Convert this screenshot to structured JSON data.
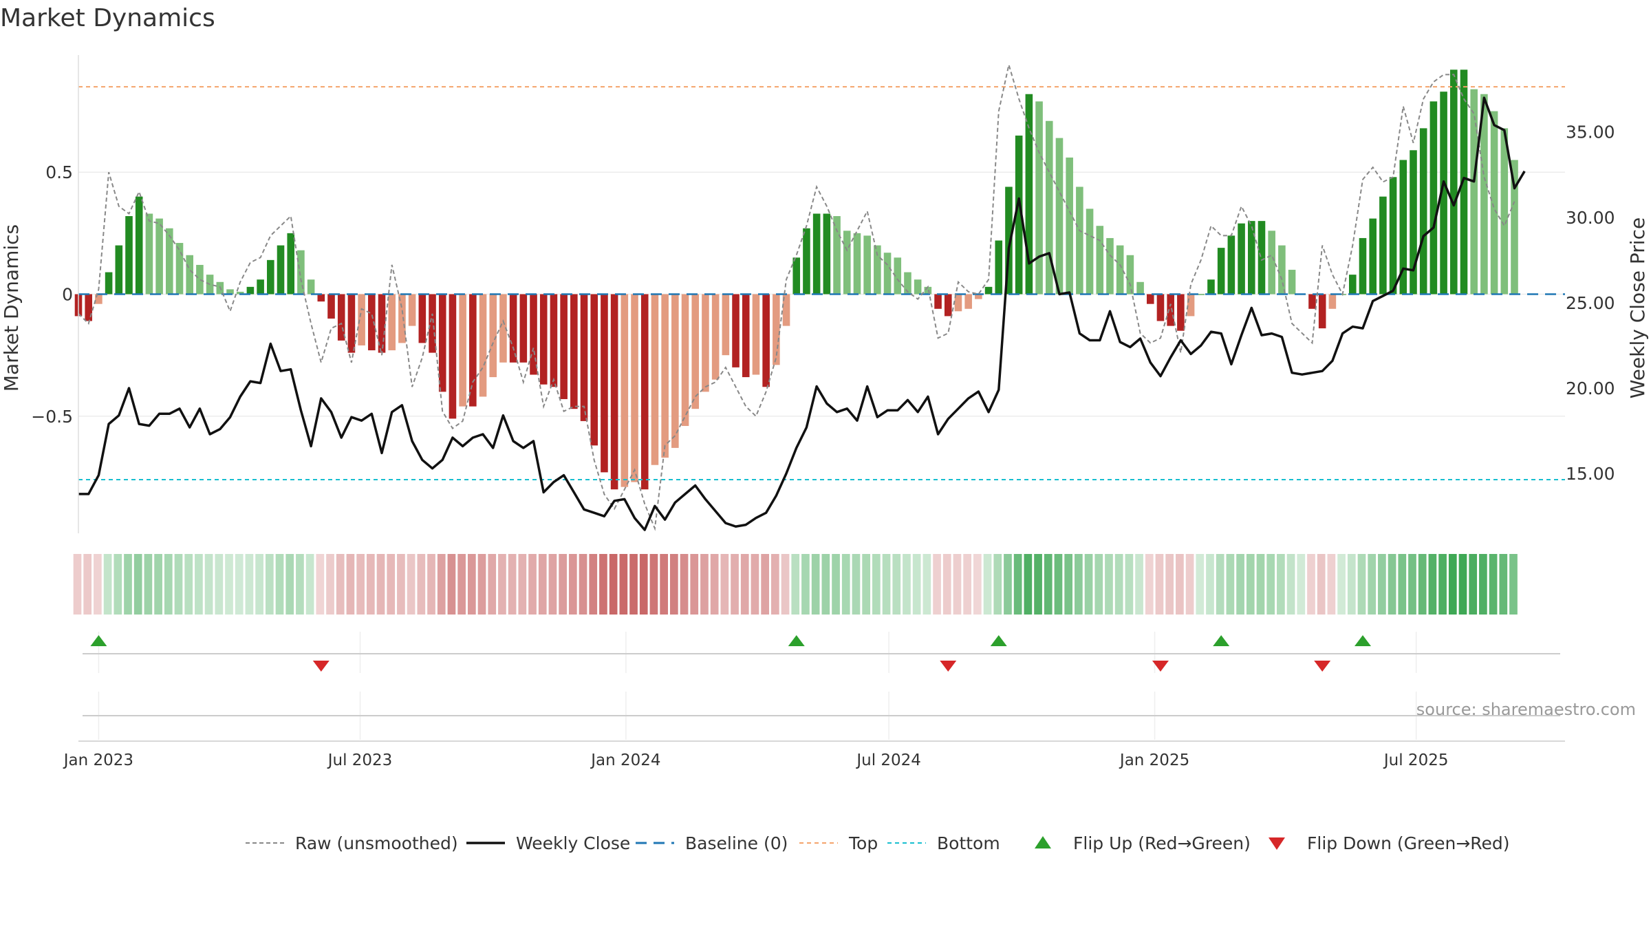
{
  "page_title": "Market Dynamics",
  "source_note": "source: sharemaestro.com",
  "colors": {
    "strong_green": "#228B22",
    "light_green": "#7fbf7b",
    "strong_red": "#b22222",
    "light_red": "#e39b80",
    "raw_line": "#888888",
    "close_line": "#111111",
    "baseline": "#1f77b4",
    "top": "#f4a46b",
    "bottom": "#17becf",
    "flip_up": "#2ca02c",
    "flip_down": "#d62728"
  },
  "chart_data": {
    "type": "bar",
    "title": "Market Dynamics",
    "ylabel": "Market Dynamics",
    "y2label": "Weekly Close Price",
    "ylim": [
      -0.98,
      0.98
    ],
    "y2lim": [
      11.5,
      39.5
    ],
    "y_ticks": [
      {
        "value": 0.5,
        "label": "0.5"
      },
      {
        "value": 0,
        "label": "0"
      },
      {
        "value": -0.5,
        "label": "−0.5"
      }
    ],
    "y2_ticks": [
      {
        "value": 35,
        "label": "35.00"
      },
      {
        "value": 30,
        "label": "30.00"
      },
      {
        "value": 25,
        "label": "25.00"
      },
      {
        "value": 20,
        "label": "20.00"
      },
      {
        "value": 15,
        "label": "15.00"
      }
    ],
    "x_ticks": [
      {
        "date": "2023-01-01",
        "label": "Jan 2023"
      },
      {
        "date": "2023-07-01",
        "label": "Jul 2023"
      },
      {
        "date": "2024-01-01",
        "label": "Jan 2024"
      },
      {
        "date": "2024-07-01",
        "label": "Jul 2024"
      },
      {
        "date": "2025-01-01",
        "label": "Jan 2025"
      },
      {
        "date": "2025-07-01",
        "label": "Jul 2025"
      }
    ],
    "x_range": [
      "2022-12-18",
      "2025-10-12"
    ],
    "first_week": "2022-12-18",
    "top_level": 0.85,
    "bottom_level": -0.76,
    "grid": true,
    "legend_position": "bottom",
    "dynamics": [
      -0.09,
      -0.11,
      -0.04,
      0.09,
      0.2,
      0.32,
      0.4,
      0.33,
      0.31,
      0.27,
      0.21,
      0.16,
      0.12,
      0.08,
      0.05,
      0.02,
      0.01,
      0.03,
      0.06,
      0.14,
      0.2,
      0.25,
      0.18,
      0.06,
      -0.03,
      -0.1,
      -0.19,
      -0.24,
      -0.21,
      -0.23,
      -0.24,
      -0.23,
      -0.2,
      -0.13,
      -0.2,
      -0.24,
      -0.4,
      -0.51,
      -0.46,
      -0.46,
      -0.42,
      -0.34,
      -0.28,
      -0.28,
      -0.28,
      -0.33,
      -0.37,
      -0.38,
      -0.43,
      -0.47,
      -0.52,
      -0.62,
      -0.73,
      -0.8,
      -0.79,
      -0.77,
      -0.8,
      -0.7,
      -0.67,
      -0.63,
      -0.54,
      -0.47,
      -0.4,
      -0.35,
      -0.25,
      -0.3,
      -0.34,
      -0.33,
      -0.38,
      -0.29,
      -0.13,
      0.15,
      0.27,
      0.33,
      0.33,
      0.32,
      0.26,
      0.25,
      0.24,
      0.2,
      0.17,
      0.15,
      0.09,
      0.06,
      0.03,
      -0.06,
      -0.09,
      -0.07,
      -0.06,
      -0.02,
      0.03,
      0.22,
      0.44,
      0.65,
      0.82,
      0.79,
      0.71,
      0.64,
      0.56,
      0.44,
      0.35,
      0.28,
      0.23,
      0.2,
      0.16,
      0.05,
      -0.04,
      -0.11,
      -0.13,
      -0.15,
      -0.09,
      0.0,
      0.06,
      0.19,
      0.24,
      0.29,
      0.3,
      0.3,
      0.26,
      0.2,
      0.1,
      0.0,
      -0.06,
      -0.14,
      -0.06,
      0.0,
      0.08,
      0.23,
      0.31,
      0.4,
      0.48,
      0.55,
      0.59,
      0.68,
      0.79,
      0.83,
      0.92,
      0.92,
      0.84,
      0.82,
      0.75,
      0.68,
      0.55
    ],
    "raw": [
      -0.08,
      -0.12,
      0.02,
      0.5,
      0.36,
      0.33,
      0.42,
      0.3,
      0.29,
      0.24,
      0.18,
      0.1,
      0.06,
      0.04,
      0.03,
      -0.07,
      0.05,
      0.13,
      0.15,
      0.24,
      0.28,
      0.32,
      0.06,
      -0.12,
      -0.28,
      -0.14,
      -0.12,
      -0.28,
      -0.06,
      -0.08,
      -0.25,
      0.12,
      -0.06,
      -0.38,
      -0.26,
      -0.08,
      -0.48,
      -0.55,
      -0.52,
      -0.36,
      -0.3,
      -0.2,
      -0.11,
      -0.22,
      -0.36,
      -0.22,
      -0.46,
      -0.35,
      -0.48,
      -0.46,
      -0.46,
      -0.68,
      -0.82,
      -0.88,
      -0.8,
      -0.72,
      -0.86,
      -0.96,
      -0.62,
      -0.58,
      -0.5,
      -0.42,
      -0.38,
      -0.36,
      -0.3,
      -0.38,
      -0.46,
      -0.5,
      -0.4,
      -0.26,
      0.06,
      0.16,
      0.28,
      0.44,
      0.36,
      0.26,
      0.18,
      0.26,
      0.34,
      0.16,
      0.12,
      0.06,
      0.01,
      -0.02,
      0.03,
      -0.18,
      -0.16,
      0.05,
      0.01,
      0.0,
      0.06,
      0.75,
      0.94,
      0.8,
      0.68,
      0.58,
      0.5,
      0.42,
      0.34,
      0.26,
      0.24,
      0.22,
      0.16,
      0.12,
      0.04,
      -0.16,
      -0.2,
      -0.18,
      -0.04,
      -0.24,
      0.04,
      0.14,
      0.28,
      0.24,
      0.24,
      0.36,
      0.28,
      0.14,
      0.16,
      0.06,
      -0.12,
      -0.16,
      -0.2,
      0.2,
      0.08,
      0.0,
      0.2,
      0.47,
      0.52,
      0.46,
      0.48,
      0.77,
      0.62,
      0.8,
      0.87,
      0.9,
      0.9,
      0.8,
      0.74,
      0.48,
      0.35,
      0.28,
      0.38
    ],
    "close": [
      13.8,
      13.8,
      14.9,
      17.9,
      18.4,
      20.0,
      17.9,
      17.8,
      18.5,
      18.5,
      18.8,
      17.7,
      18.8,
      17.3,
      17.6,
      18.3,
      19.5,
      20.4,
      20.3,
      22.6,
      21.0,
      21.1,
      18.7,
      16.6,
      19.4,
      18.6,
      17.1,
      18.3,
      18.1,
      18.5,
      16.2,
      18.6,
      19.0,
      16.9,
      15.8,
      15.3,
      15.8,
      17.1,
      16.6,
      17.1,
      17.3,
      16.5,
      18.4,
      16.9,
      16.5,
      16.9,
      13.9,
      14.5,
      14.9,
      13.9,
      12.9,
      12.7,
      12.5,
      13.4,
      13.5,
      12.4,
      11.7,
      13.1,
      12.3,
      13.3,
      13.8,
      14.3,
      13.5,
      12.8,
      12.1,
      11.9,
      12.0,
      12.4,
      12.7,
      13.7,
      15.0,
      16.5,
      17.7,
      20.1,
      19.1,
      18.6,
      18.8,
      18.1,
      20.1,
      18.3,
      18.7,
      18.7,
      19.3,
      18.6,
      19.5,
      17.3,
      18.2,
      18.8,
      19.4,
      19.8,
      18.6,
      19.9,
      28.2,
      31.1,
      27.3,
      27.7,
      27.9,
      25.5,
      25.6,
      23.2,
      22.8,
      22.8,
      24.5,
      22.7,
      22.4,
      22.9,
      21.5,
      20.7,
      21.8,
      22.8,
      22.0,
      22.5,
      23.3,
      23.2,
      21.4,
      23.1,
      24.7,
      23.1,
      23.2,
      23.0,
      20.9,
      20.8,
      20.9,
      21.0,
      21.6,
      23.2,
      23.6,
      23.5,
      25.1,
      25.4,
      25.7,
      27.0,
      26.9,
      28.9,
      29.4,
      32.1,
      30.7,
      32.3,
      32.1,
      37.0,
      35.4,
      35.1,
      31.7,
      32.7
    ],
    "flip_up_weeks": [
      2,
      71,
      91,
      113,
      127
    ],
    "flip_down_weeks": [
      24,
      86,
      107,
      123
    ],
    "regime_strip": {
      "description": "heat strip of smoothed dynamics, one cell per week"
    },
    "legend": [
      {
        "key": "raw",
        "label": "Raw (unsmoothed)"
      },
      {
        "key": "close",
        "label": "Weekly Close"
      },
      {
        "key": "baseline",
        "label": "Baseline (0)"
      },
      {
        "key": "top",
        "label": "Top"
      },
      {
        "key": "bottom",
        "label": "Bottom"
      },
      {
        "key": "flip_up",
        "label": "Flip Up (Red→Green)"
      },
      {
        "key": "flip_down",
        "label": "Flip Down (Green→Red)"
      }
    ]
  }
}
